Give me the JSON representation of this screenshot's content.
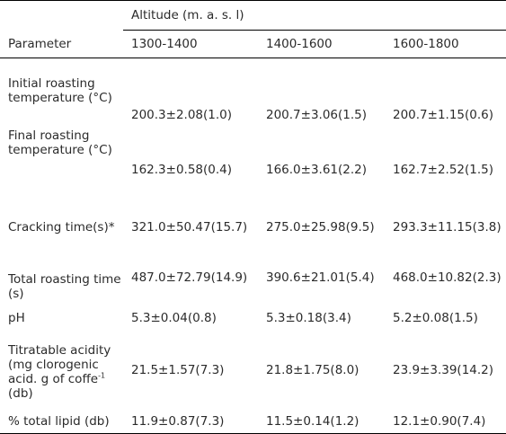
{
  "header": {
    "group_label": "Altitude (m. a. s. l)",
    "param_label": "Parameter",
    "columns": [
      "1300-1400",
      "1400-1600",
      "1600-1800"
    ]
  },
  "rows": [
    {
      "param": "Initial roasting temperature (°C)",
      "values": [
        "200.3±2.08(1.0)",
        "200.7±3.06(1.5)",
        "200.7±1.15(0.6)"
      ]
    },
    {
      "param": "Final roasting temperature (°C)",
      "values": [
        "162.3±0.58(0.4)",
        "166.0±3.61(2.2)",
        "162.7±2.52(1.5)"
      ]
    },
    {
      "param": "Cracking time(s)*",
      "values": [
        "321.0±50.47(15.7)",
        "275.0±25.98(9.5)",
        "293.3±11.15(3.8)"
      ]
    },
    {
      "param": "Total roasting time (s)",
      "values": [
        "487.0±72.79(14.9)",
        "390.6±21.01(5.4)",
        "468.0±10.82(2.3)"
      ]
    },
    {
      "param": "pH",
      "values": [
        "5.3±0.04(0.8)",
        "5.3±0.18(3.4)",
        "5.2±0.08(1.5)"
      ]
    },
    {
      "param_parts": [
        "Titratable acidity (mg clorogenic acid. g of coffe",
        "-1",
        " (db)"
      ],
      "values": [
        "21.5±1.57(7.3)",
        "21.8±1.75(8.0)",
        "23.9±3.39(14.2)"
      ]
    },
    {
      "param": "% total lipid (db)",
      "values": [
        "11.9±0.87(7.3)",
        "11.5±0.14(1.2)",
        "12.1±0.90(7.4)"
      ]
    }
  ]
}
